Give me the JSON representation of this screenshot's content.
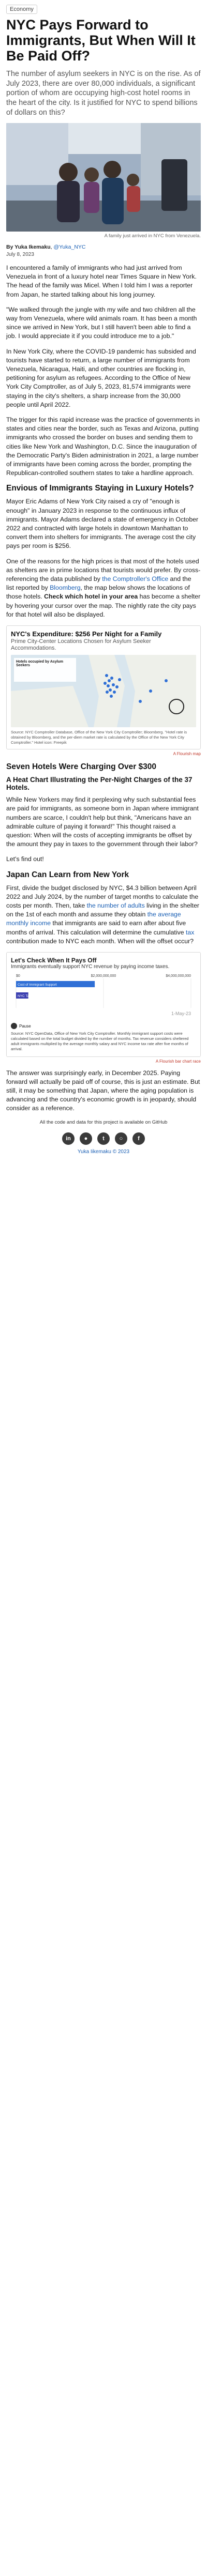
{
  "tag": "Economy",
  "title": "NYC Pays Forward to Immigrants, But When Will It Be Paid Off?",
  "lede": "The number of asylum seekers in NYC is on the rise. As of July 2023, there are over 80,000 individuals, a significant portion of whom are occupying high-cost hotel rooms in the heart of the city. Is it justified for NYC to spend billions of dollars on this?",
  "hero_caption": "A family just arrived in NYC from Venezuela.",
  "byline_prefix": "By Yuka Ikemaku",
  "byline_handle": "@Yuka_NYC",
  "date": "July 8, 2023",
  "paragraphs": {
    "p1": "I encountered a family of immigrants who had just arrived from Venezuela in front of a luxury hotel near Times Square in New York. The head of the family was Micel. When I told him I was a reporter from Japan, he started talking about his long journey.",
    "p2": "\"We walked through the jungle with my wife and two children all the way from Venezuela, where wild animals roam. It has been a month since we arrived in New York, but I still haven't been able to find a job. I would appreciate it if you could introduce me to a job.\"",
    "p3": "In New York City, where the COVID-19 pandemic has subsided and tourists have started to return, a large number of immigrants from Venezuela, Nicaragua, Haiti, and other countries are flocking in, petitioning for asylum as refugees. According to the Office of New York City Comptroller, as of July 5, 2023, 81,574 immigrants were staying in the city's shelters, a sharp increase from the 30,000 people until April 2022.",
    "p4": "The trigger for this rapid increase was the practice of governments in states and cities near the border, such as Texas and Arizona, putting immigrants who crossed the border on buses and sending them to cities like New York and Washington, D.C. Since the inauguration of the Democratic Party's Biden administration in 2021, a large number of immigrants have been coming across the border, prompting the Republican-controlled southern states to take a hardline approach.",
    "h_envious": "Envious of Immigrants Staying in Luxury Hotels?",
    "p5": "Mayor Eric Adams of New York City raised a cry of \"enough is enough\" in January 2023 in response to the continuous influx of immigrants. Mayor Adams declared a state of emergency in October 2022 and contracted with large hotels in downtown Manhattan to convert them into shelters for immigrants. The average cost the city pays per room is $256.",
    "p6a": "One of the reasons for the high prices is that most of the hotels used as shelters are in prime locations that tourists would prefer. By cross-referencing the data published by ",
    "p6_link1": "the Comptroller's Office",
    "p6b": " and the list reported by ",
    "p6_link2": "Bloomberg",
    "p6c": ", the map below shows the locations of those hotels. ",
    "p6_strong": "Check which hotel in your area",
    "p6d": " has become a shelter by hovering your cursor over the map. The nightly rate the city pays for that hotel will also be displayed.",
    "h_seven": "Seven Hotels Were Charging Over $300",
    "h_heatmap": "A Heat Chart Illustrating the Per-Night Charges of the 37 Hotels.",
    "p7": "While New Yorkers may find it perplexing why such substantial fees are paid for immigrants, as someone born in Japan where immigrant numbers are scarce, I couldn't help but think, \"Americans have an admirable culture of paying it forward!\" This thought raised a question: When will the costs of accepting immigrants be offset by the amount they pay in taxes to the government through their labor?",
    "p8": "Let's find out!",
    "h_japan": "Japan Can Learn from New York",
    "p9a": "First, divide the budget disclosed by NYC, $4.3 billion between April 2022 and July 2024, by the number of target months to calculate the costs per month. Then, take ",
    "p9_link1": "the number of adults",
    "p9b": " living in the shelter on the 1st of each month and assume they obtain ",
    "p9_link2": "the average monthly income",
    "p9c": " that immigrants are said to earn after about five months of arrival. This calculation will determine the cumulative ",
    "p9_link3": "tax",
    "p9d": " contribution made to NYC each month. When will the offset occur?",
    "p10": "The answer was surprisingly early, in December 2025. Paying forward will actually be paid off of course, this is just an estimate. But still, it may be something that Japan, where the aging population is advancing and the country's economic growth is in jeopardy, should consider as a reference."
  },
  "map_chart": {
    "title": "NYC's Expenditure: $256 Per Night for a Family",
    "subtitle": "Prime City-Center Locations Chosen for Asylum Seeker Accommodations.",
    "legend_title": "Hotels occupied by Asylum Seekers",
    "source": "Source: NYC Comptroller Database, Office of the New York City Comptroller; Bloomberg. \"Hotel rate is obtained by Bloomberg, and the per-diem market rate is calculated by the Office of the New York City Comptroller.\" Hotel icon: Freepik",
    "flourish": "A Flourish map"
  },
  "bar_chart": {
    "title": "Let's Check When It Pays Off",
    "subtitle": "Immigrants eventually support NYC revenue by paying income taxes.",
    "axis_ticks": [
      "$0",
      "$2,000,000,000",
      "$4,000,000,000"
    ],
    "label_cost": "Cost of Immigrant Support",
    "label_tax": "NYC Tax Revenue (Total)",
    "date_label": "1-May-23",
    "play_label": "Pause",
    "source": "Source: NYC OpenData, Office of New York City Comptroller. Monthly immigrant support costs were calculated based on the total budget divided by the number of months. Tax revenue considers sheltered adult immigrants multiplied by the average monthly salary and NYC income tax rate after five months of arrival.",
    "flourish": "A Flourish bar chart race",
    "chart_data": {
      "type": "bar",
      "categories": [
        "Cost of Immigrant Support",
        "NYC Tax Revenue (Total)"
      ],
      "values": [
        1800000000,
        280000000
      ],
      "xlim": [
        0,
        4000000000
      ]
    }
  },
  "footnote": "All the code and data for this project is available on GitHub",
  "footer_name": "Yuka Iikemaku © 2023",
  "social": [
    "in",
    "gh",
    "tw",
    "ig",
    "fb"
  ]
}
